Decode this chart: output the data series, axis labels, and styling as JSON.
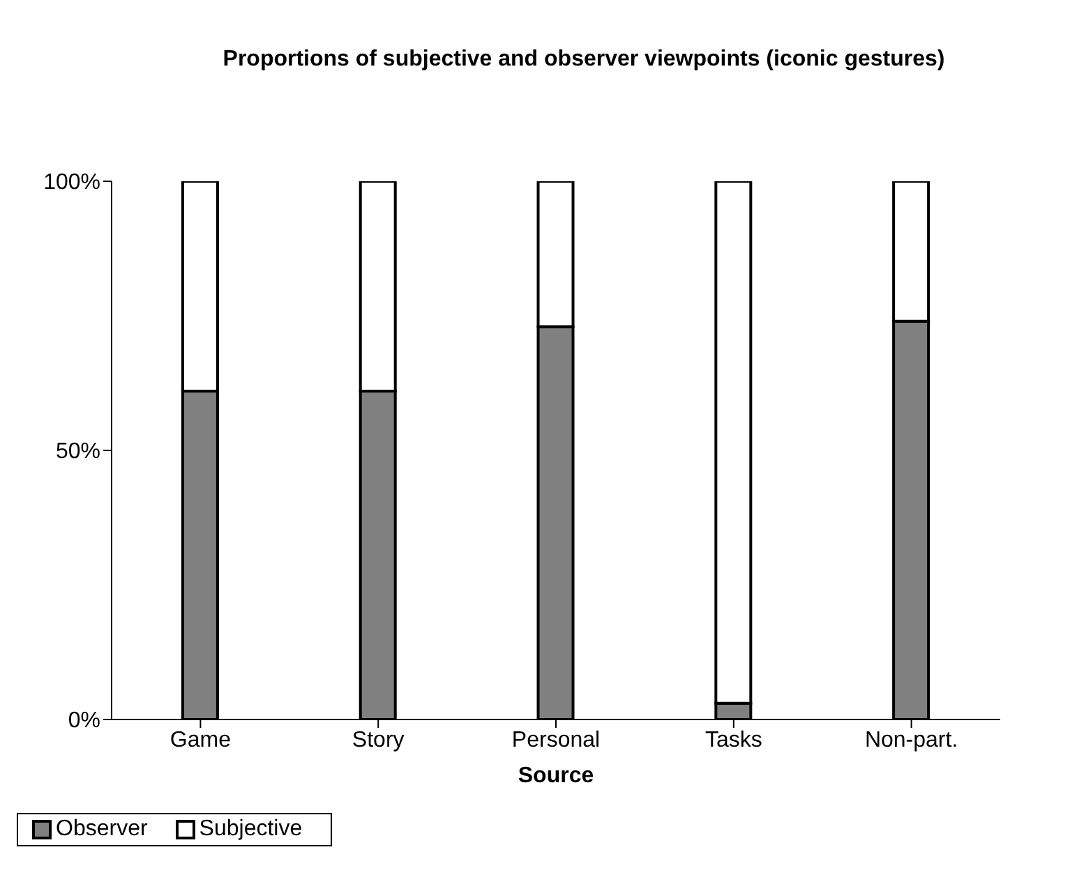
{
  "chart_data": {
    "type": "bar",
    "title": "Proportions of subjective and observer viewpoints (iconic gestures)",
    "xlabel": "Source",
    "categories": [
      "Game",
      "Story",
      "Personal",
      "Tasks",
      "Non-part."
    ],
    "stacked": true,
    "series": [
      {
        "name": "Observer",
        "color": "#808080",
        "values": [
          61,
          61,
          73,
          3,
          74
        ]
      },
      {
        "name": "Subjective",
        "color": "#ffffff",
        "values": [
          39,
          39,
          27,
          97,
          26
        ]
      }
    ],
    "ylim": [
      0,
      100
    ],
    "yticks": [
      {
        "value": 0,
        "label": "0%"
      },
      {
        "value": 50,
        "label": "50%"
      },
      {
        "value": 100,
        "label": "100%"
      }
    ],
    "grid": false,
    "legend": "bottom left"
  }
}
